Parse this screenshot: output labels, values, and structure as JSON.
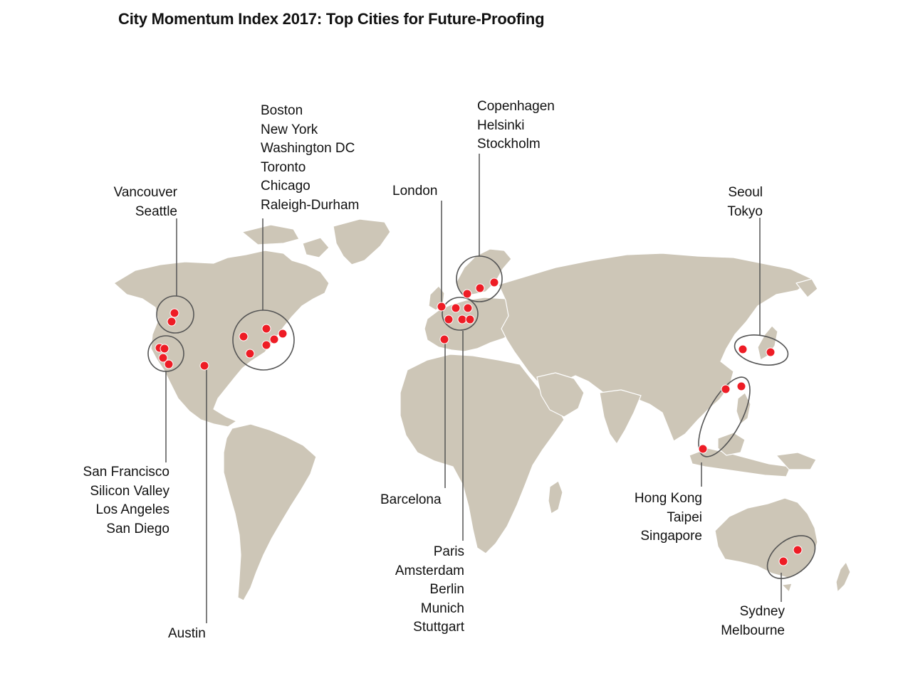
{
  "title": "City Momentum Index 2017: Top Cities for Future-Proofing",
  "colors": {
    "land": "#cdc6b7",
    "border": "#ffffff",
    "marker": "#ee1c25",
    "leader": "#555555"
  },
  "groups": {
    "pacific_nw": [
      "Vancouver",
      "Seattle"
    ],
    "east_na": [
      "Boston",
      "New York",
      "Washington DC",
      "Toronto",
      "Chicago",
      "Raleigh-Durham"
    ],
    "california": [
      "San Francisco",
      "Silicon Valley",
      "Los Angeles",
      "San Diego"
    ],
    "austin": [
      "Austin"
    ],
    "london": [
      "London"
    ],
    "nordic": [
      "Copenhagen",
      "Helsinki",
      "Stockholm"
    ],
    "barcelona": [
      "Barcelona"
    ],
    "continental": [
      "Paris",
      "Amsterdam",
      "Berlin",
      "Munich",
      "Stuttgart"
    ],
    "east_asia": [
      "Seoul",
      "Tokyo"
    ],
    "se_asia": [
      "Hong Kong",
      "Taipei",
      "Singapore"
    ],
    "australia": [
      "Sydney",
      "Melbourne"
    ]
  }
}
